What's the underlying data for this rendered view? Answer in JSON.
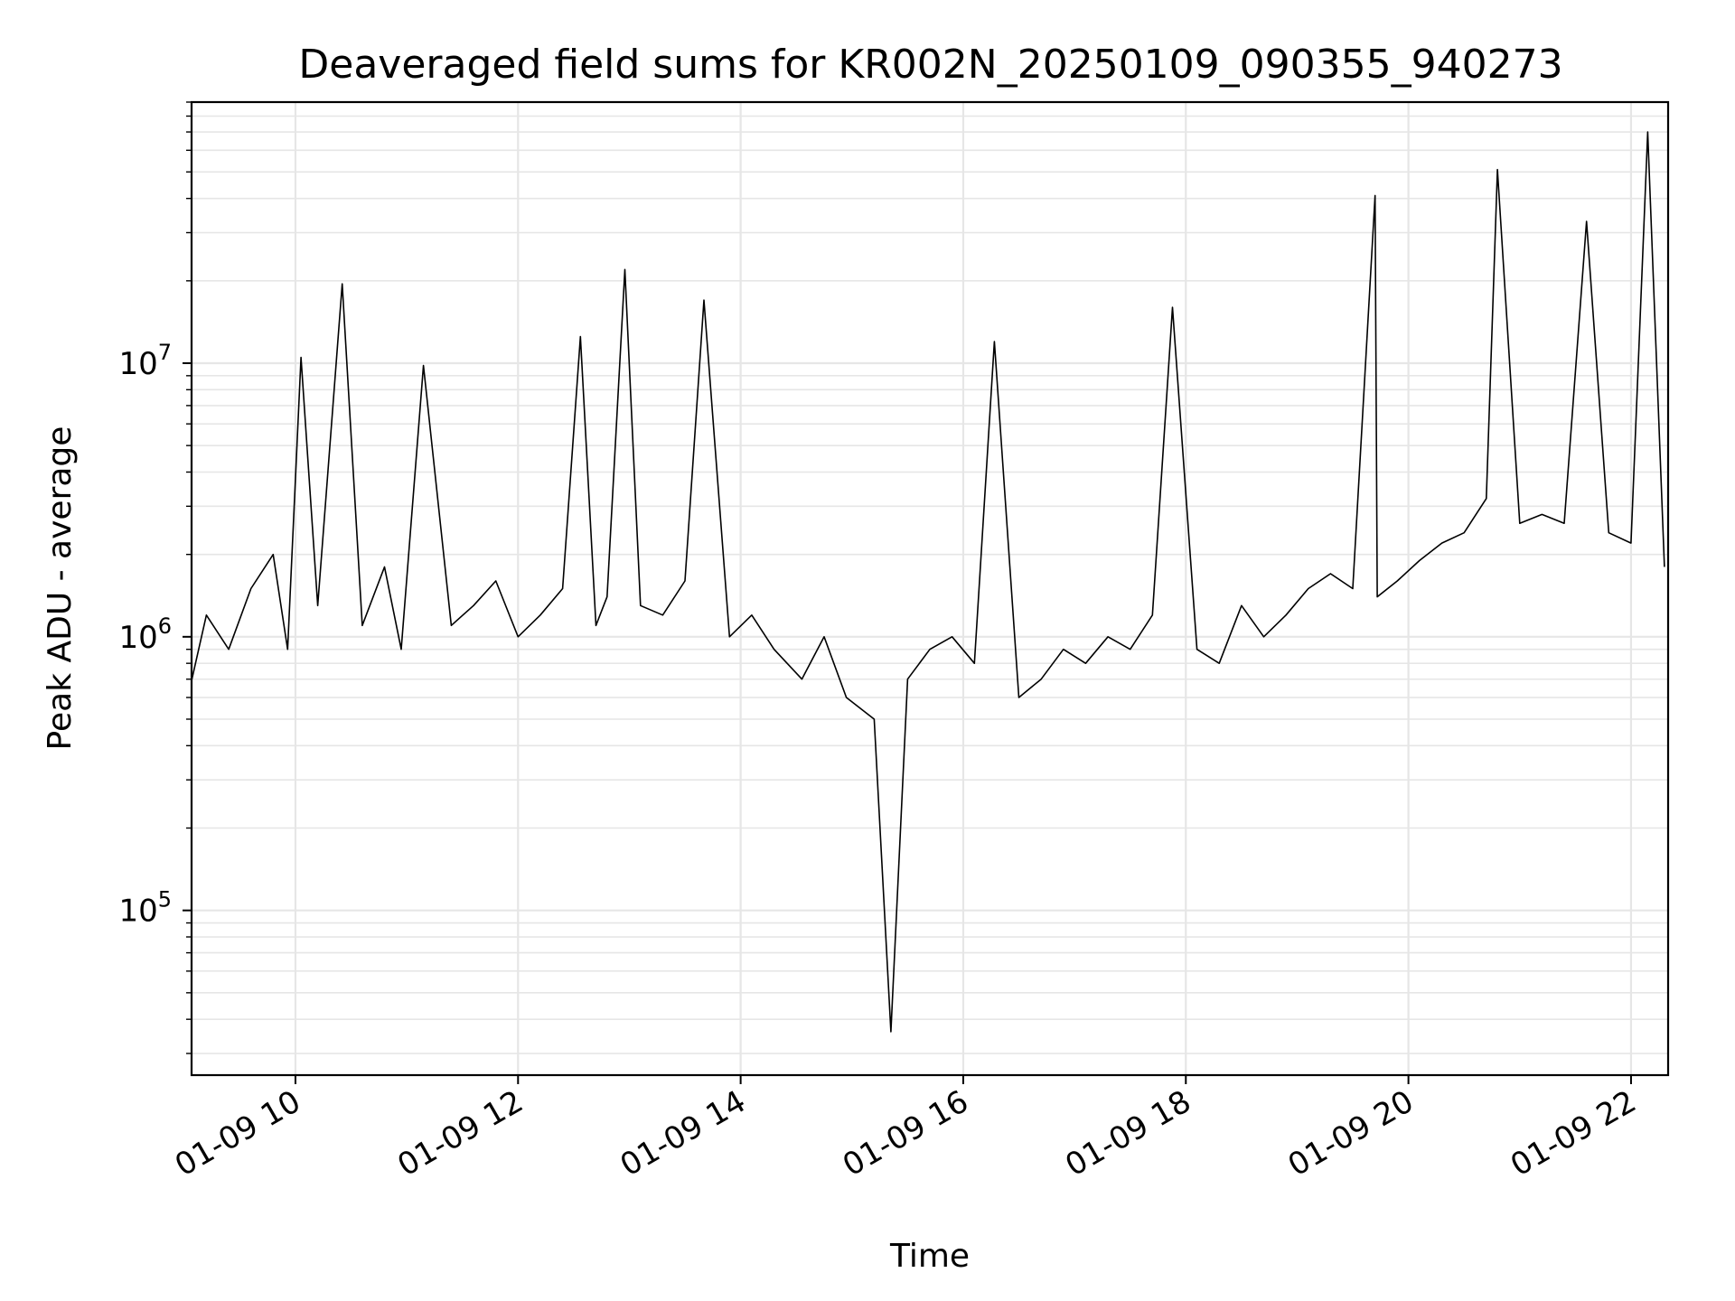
{
  "chart_data": {
    "type": "line",
    "title": "Deaveraged field sums for KR002N_20250109_090355_940273",
    "xlabel": "Time",
    "ylabel": "Peak ADU - average",
    "x_type": "datetime",
    "x_range": [
      "01-09 09:04",
      "01-09 22:20"
    ],
    "y_scale": "log",
    "ylim": [
      25000,
      90000000
    ],
    "grid": true,
    "x_ticks": [
      {
        "label": "01-09 10",
        "hour": 10
      },
      {
        "label": "01-09 12",
        "hour": 12
      },
      {
        "label": "01-09 14",
        "hour": 14
      },
      {
        "label": "01-09 16",
        "hour": 16
      },
      {
        "label": "01-09 18",
        "hour": 18
      },
      {
        "label": "01-09 20",
        "hour": 20
      },
      {
        "label": "01-09 22",
        "hour": 22
      }
    ],
    "y_ticks": [
      {
        "base": "10",
        "exp": "5",
        "value": 100000
      },
      {
        "base": "10",
        "exp": "6",
        "value": 1000000
      },
      {
        "base": "10",
        "exp": "7",
        "value": 10000000
      }
    ],
    "series": [
      {
        "color": "#000000",
        "x_hours": [
          9.07,
          9.2,
          9.4,
          9.6,
          9.8,
          9.93,
          10.05,
          10.2,
          10.42,
          10.6,
          10.8,
          10.95,
          11.15,
          11.4,
          11.6,
          11.8,
          12.0,
          12.2,
          12.4,
          12.56,
          12.7,
          12.8,
          12.96,
          13.1,
          13.3,
          13.5,
          13.67,
          13.9,
          14.1,
          14.3,
          14.55,
          14.75,
          14.95,
          15.2,
          15.35,
          15.5,
          15.7,
          15.9,
          16.1,
          16.28,
          16.5,
          16.7,
          16.9,
          17.1,
          17.3,
          17.5,
          17.7,
          17.88,
          18.1,
          18.3,
          18.5,
          18.7,
          18.9,
          19.1,
          19.3,
          19.5,
          19.7,
          19.72,
          19.9,
          20.1,
          20.3,
          20.5,
          20.7,
          20.8,
          21.0,
          21.2,
          21.4,
          21.6,
          21.8,
          22.0,
          22.15,
          22.3
        ],
        "values": [
          700000,
          1200000,
          900000,
          1500000,
          2000000,
          900000,
          10500000,
          1300000,
          19500000,
          1100000,
          1800000,
          900000,
          9800000,
          1100000,
          1300000,
          1600000,
          1000000,
          1200000,
          1500000,
          12500000,
          1100000,
          1400000,
          22000000,
          1300000,
          1200000,
          1600000,
          17000000,
          1000000,
          1200000,
          900000,
          700000,
          1000000,
          600000,
          500000,
          36000,
          700000,
          900000,
          1000000,
          800000,
          12000000,
          600000,
          700000,
          900000,
          800000,
          1000000,
          900000,
          1200000,
          16000000,
          900000,
          800000,
          1300000,
          1000000,
          1200000,
          1500000,
          1700000,
          1500000,
          41000000,
          1400000,
          1600000,
          1900000,
          2200000,
          2400000,
          3200000,
          51000000,
          2600000,
          2800000,
          2600000,
          33000000,
          2400000,
          2200000,
          70000000,
          1800000
        ]
      }
    ]
  }
}
